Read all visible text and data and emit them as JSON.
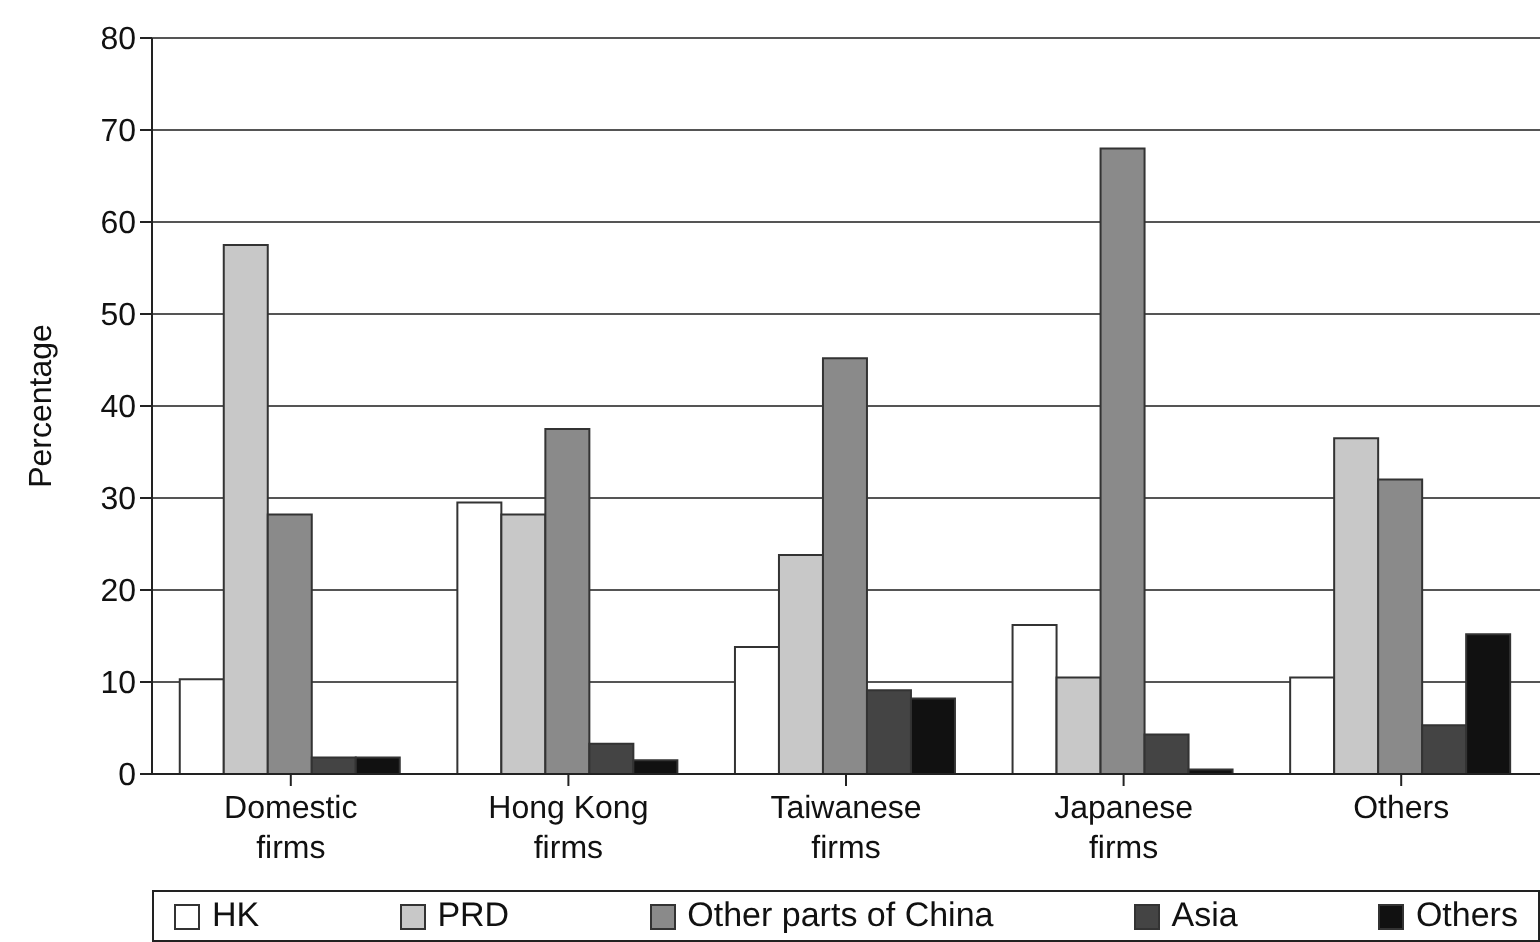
{
  "chart_data": {
    "type": "bar",
    "ylabel": "Percentage",
    "categories": [
      "Domestic firms",
      "Hong Kong firms",
      "Taiwanese firms",
      "Japanese firms",
      "Others"
    ],
    "series": [
      {
        "name": "HK",
        "color": "#ffffff",
        "values": [
          10.3,
          29.5,
          13.8,
          16.2,
          10.5
        ]
      },
      {
        "name": "PRD",
        "color": "#c8c8c8",
        "values": [
          57.5,
          28.2,
          23.8,
          10.5,
          36.5
        ]
      },
      {
        "name": "Other parts of China",
        "color": "#8a8a8a",
        "values": [
          28.2,
          37.5,
          45.2,
          68,
          32
        ]
      },
      {
        "name": "Asia",
        "color": "#444444",
        "values": [
          1.8,
          3.3,
          9.1,
          4.3,
          5.3
        ]
      },
      {
        "name": "Others",
        "color": "#111111",
        "values": [
          1.8,
          1.5,
          8.2,
          0.5,
          15.2
        ]
      }
    ],
    "ylim": [
      0,
      80
    ],
    "yticks": [
      0,
      10,
      20,
      30,
      40,
      50,
      60,
      70,
      80
    ],
    "grid": "y",
    "legend": "bottom"
  }
}
